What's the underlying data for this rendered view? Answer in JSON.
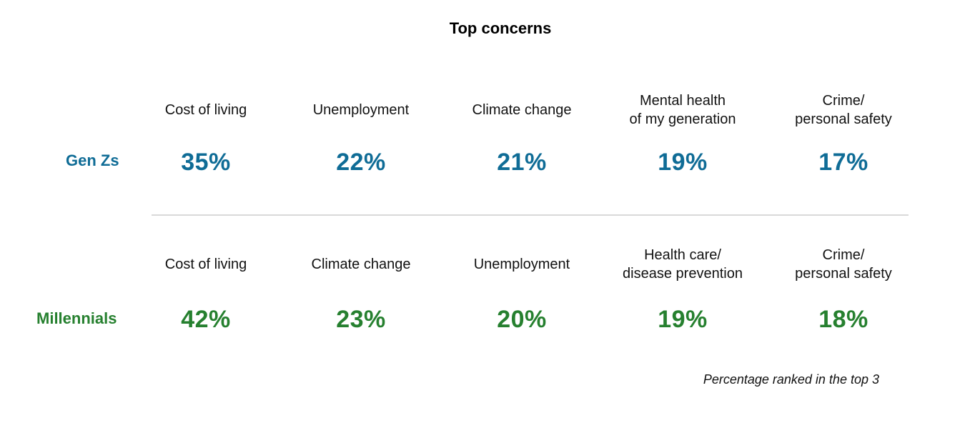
{
  "chart_data": {
    "type": "table",
    "title": "Top concerns",
    "note": "Percentage ranked in the top 3",
    "colors": {
      "gen_z": "#0f6c96",
      "millennials": "#26802f",
      "divider": "#d9d9d9"
    },
    "groups": [
      {
        "name": "Gen Zs",
        "color": "#0f6c96",
        "items": [
          {
            "label": "Cost of living",
            "value": "35%"
          },
          {
            "label": "Unemployment",
            "value": "22%"
          },
          {
            "label": "Climate change",
            "value": "21%"
          },
          {
            "label": "Mental health\nof my generation",
            "value": "19%"
          },
          {
            "label": "Crime/\npersonal safety",
            "value": "17%"
          }
        ]
      },
      {
        "name": "Millennials",
        "color": "#26802f",
        "items": [
          {
            "label": "Cost of living",
            "value": "42%"
          },
          {
            "label": "Climate change",
            "value": "23%"
          },
          {
            "label": "Unemployment",
            "value": "20%"
          },
          {
            "label": "Health care/\ndisease prevention",
            "value": "19%"
          },
          {
            "label": "Crime/\npersonal safety",
            "value": "18%"
          }
        ]
      }
    ]
  }
}
